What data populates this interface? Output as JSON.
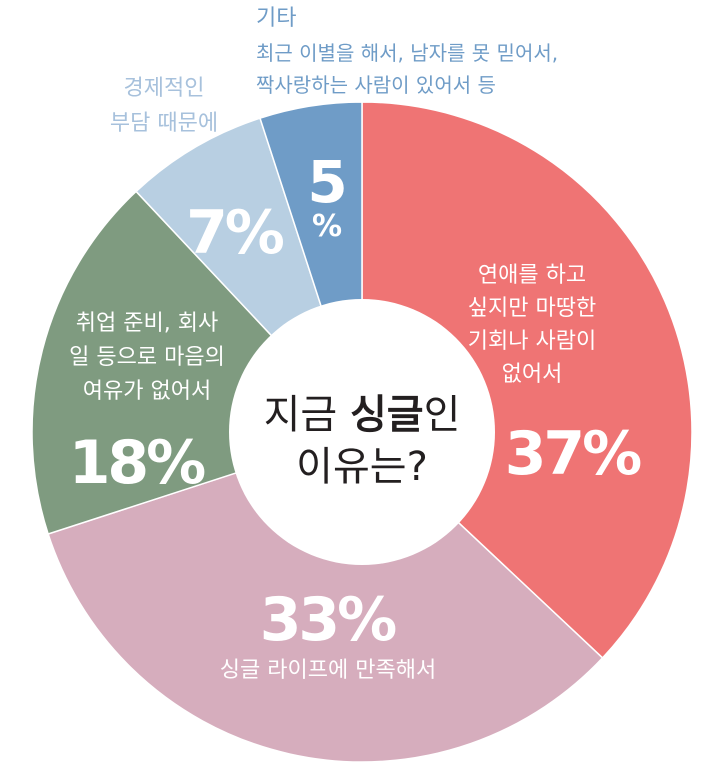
{
  "chart_data": {
    "type": "pie",
    "title_parts": [
      "지금 ",
      "싱글",
      "인"
    ],
    "title_line2": "이유는?",
    "slices": [
      {
        "key": "love",
        "value": 37,
        "pct_label": "37%",
        "label_lines": [
          "연애를 하고",
          "싶지만 마땅한",
          "기회나 사람이",
          "없어서"
        ],
        "color": "#ef7474",
        "label_color": "#ffffff"
      },
      {
        "key": "single_life",
        "value": 33,
        "pct_label": "33%",
        "label_lines": [
          "싱글 라이프에 만족해서"
        ],
        "color": "#d6adbd",
        "label_color": "#ffffff"
      },
      {
        "key": "job",
        "value": 18,
        "pct_label": "18%",
        "label_lines": [
          "취업 준비, 회사",
          "일 등으로 마음의",
          "여유가 없어서"
        ],
        "color": "#7f9b80",
        "label_color": "#ffffff"
      },
      {
        "key": "economic",
        "value": 7,
        "pct_label": "7%",
        "label_lines": [
          "경제적인",
          "부담 때문에"
        ],
        "color": "#b8cfe2",
        "label_color": "#a7c1dc"
      },
      {
        "key": "other",
        "value": 5,
        "pct_label": [
          "5",
          "%"
        ],
        "label_title": "기타",
        "label_lines": [
          "최근 이별을 해서, 남자를 못 믿어서,",
          "짝사랑하는 사람이 있어서 등"
        ],
        "color": "#6f9cc7",
        "label_color": "#6f9cc7"
      }
    ]
  }
}
